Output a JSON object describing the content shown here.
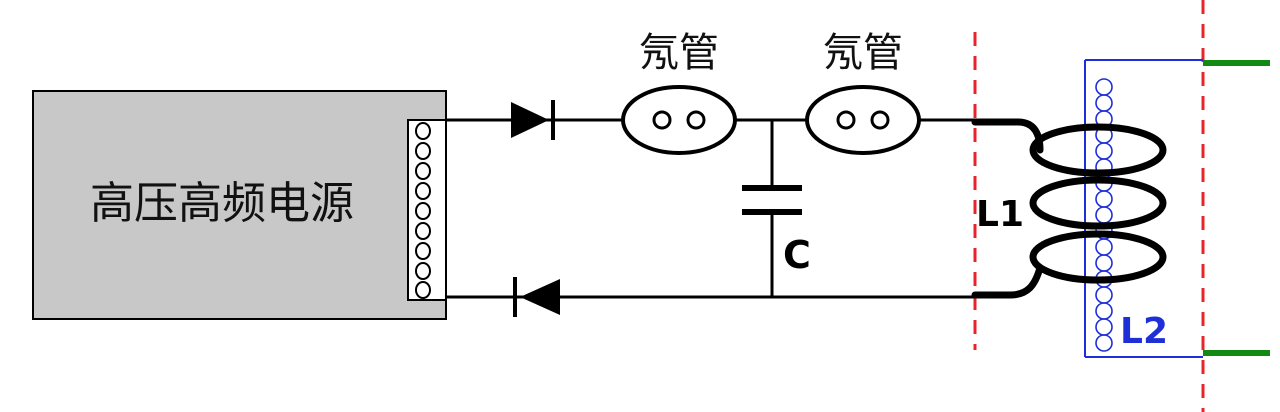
{
  "labels": {
    "power_supply": "高压高频电源",
    "neon_tube_1": "氖管",
    "neon_tube_2": "氖管",
    "capacitor": "C",
    "inductor_1": "L1",
    "inductor_2": "L2"
  },
  "colors": {
    "wire": "#000000",
    "box_fill": "#c8c8c8",
    "secondary_coil": "#1f2fd8",
    "boundary_dash": "#e8242a",
    "output_terminal": "#128a12"
  },
  "icons": [
    "diode-right-icon",
    "diode-left-icon",
    "neon-tube-icon",
    "capacitor-icon",
    "coil-icon"
  ]
}
